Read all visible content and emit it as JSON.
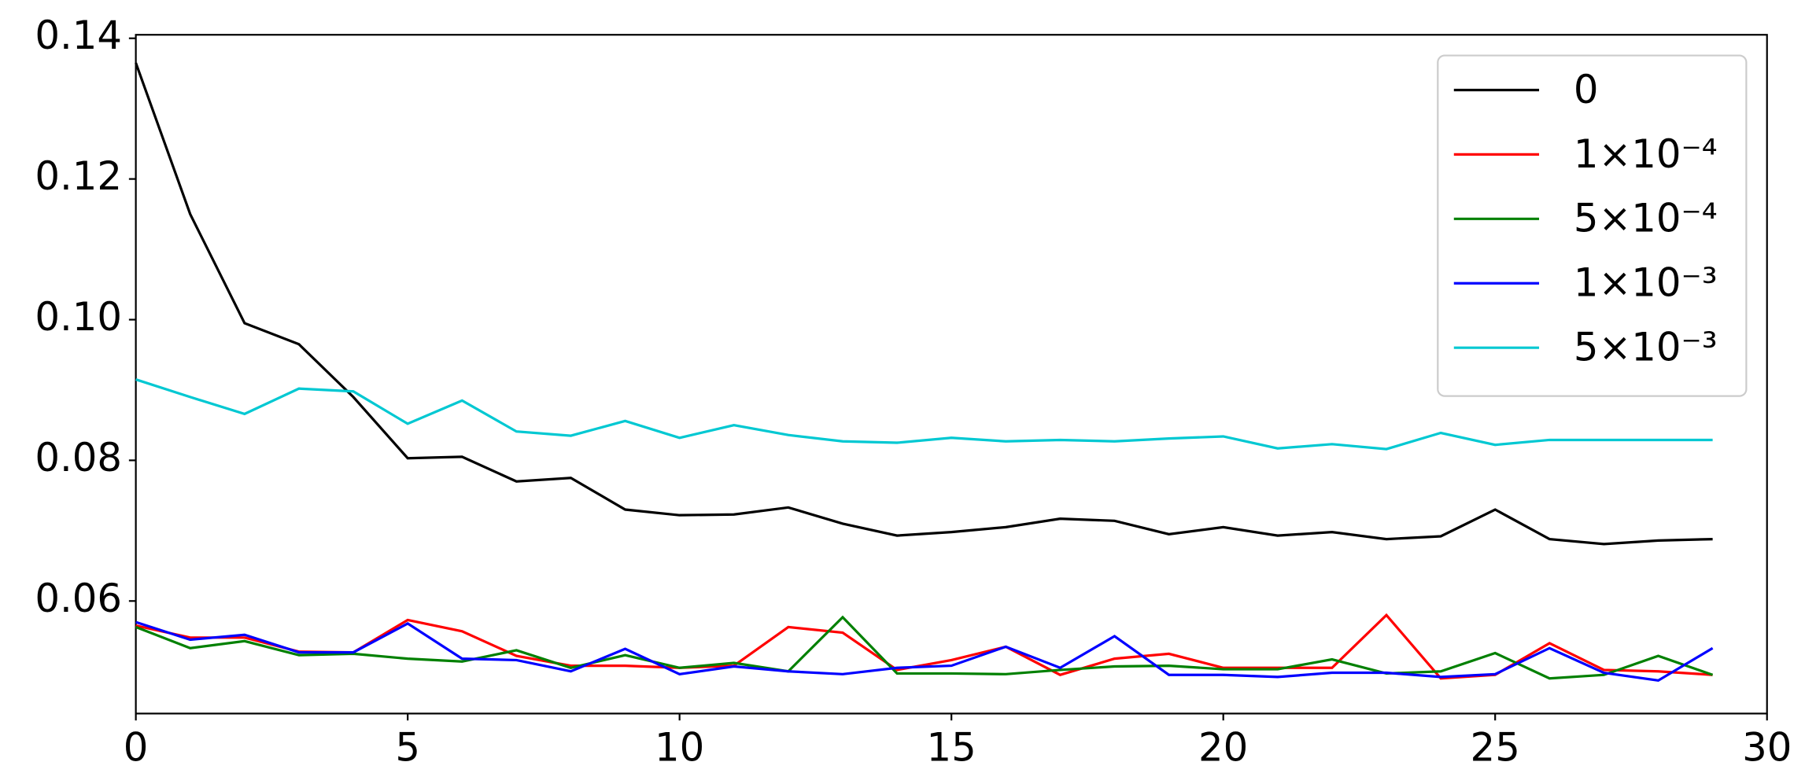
{
  "chart_data": {
    "type": "line",
    "x": [
      0,
      1,
      2,
      3,
      4,
      5,
      6,
      7,
      8,
      9,
      10,
      11,
      12,
      13,
      14,
      15,
      16,
      17,
      18,
      19,
      20,
      21,
      22,
      23,
      24,
      25,
      26,
      27,
      28,
      29
    ],
    "series": [
      {
        "name": "0",
        "color": "#000000",
        "values": [
          0.1365,
          0.115,
          0.0995,
          0.0965,
          0.089,
          0.0803,
          0.0805,
          0.077,
          0.0775,
          0.073,
          0.0722,
          0.0723,
          0.0733,
          0.071,
          0.0693,
          0.0698,
          0.0705,
          0.0717,
          0.0714,
          0.0695,
          0.0705,
          0.0693,
          0.0698,
          0.0688,
          0.0692,
          0.073,
          0.0688,
          0.0681,
          0.0686,
          0.0688
        ]
      },
      {
        "name": "1×10⁻⁴",
        "color": "#ff0000",
        "values": [
          0.0565,
          0.0548,
          0.0548,
          0.0528,
          0.0527,
          0.0573,
          0.0557,
          0.0522,
          0.0508,
          0.0508,
          0.0505,
          0.0508,
          0.0563,
          0.0555,
          0.0502,
          0.0516,
          0.0535,
          0.0495,
          0.0518,
          0.0525,
          0.0505,
          0.0505,
          0.0505,
          0.058,
          0.049,
          0.0495,
          0.054,
          0.0502,
          0.05,
          0.0495
        ]
      },
      {
        "name": "5×10⁻⁴",
        "color": "#008000",
        "values": [
          0.0563,
          0.0533,
          0.0543,
          0.0523,
          0.0525,
          0.0518,
          0.0514,
          0.053,
          0.0505,
          0.0523,
          0.0505,
          0.0512,
          0.05,
          0.0577,
          0.0497,
          0.0497,
          0.0496,
          0.0502,
          0.0507,
          0.0508,
          0.0503,
          0.0503,
          0.0517,
          0.0497,
          0.05,
          0.0526,
          0.049,
          0.0495,
          0.0522,
          0.0495
        ]
      },
      {
        "name": "1×10⁻³",
        "color": "#0000ff",
        "values": [
          0.057,
          0.0545,
          0.0552,
          0.0527,
          0.0527,
          0.0568,
          0.0518,
          0.0516,
          0.05,
          0.0532,
          0.0496,
          0.0507,
          0.05,
          0.0496,
          0.0505,
          0.0508,
          0.0535,
          0.0505,
          0.055,
          0.0495,
          0.0495,
          0.0492,
          0.0498,
          0.0498,
          0.0492,
          0.0496,
          0.0533,
          0.0498,
          0.0487,
          0.0533
        ]
      },
      {
        "name": "5×10⁻³",
        "color": "#00c8d2",
        "values": [
          0.0915,
          0.089,
          0.0866,
          0.0902,
          0.0898,
          0.0852,
          0.0885,
          0.0841,
          0.0835,
          0.0856,
          0.0832,
          0.085,
          0.0836,
          0.0827,
          0.0825,
          0.0832,
          0.0827,
          0.0829,
          0.0827,
          0.0831,
          0.0834,
          0.0817,
          0.0823,
          0.0816,
          0.0839,
          0.0822,
          0.0829,
          0.0829,
          0.0829,
          0.0829
        ]
      }
    ],
    "xlim": [
      0,
      30
    ],
    "xticks": [
      0,
      5,
      10,
      15,
      20,
      25,
      30
    ],
    "ylim": [
      0.044,
      0.1405
    ],
    "yticks": [
      0.06,
      0.08,
      {
        "value": 0.1,
        "label": "0.10"
      },
      0.12,
      0.14
    ],
    "grid": false,
    "legend": "upper right"
  }
}
